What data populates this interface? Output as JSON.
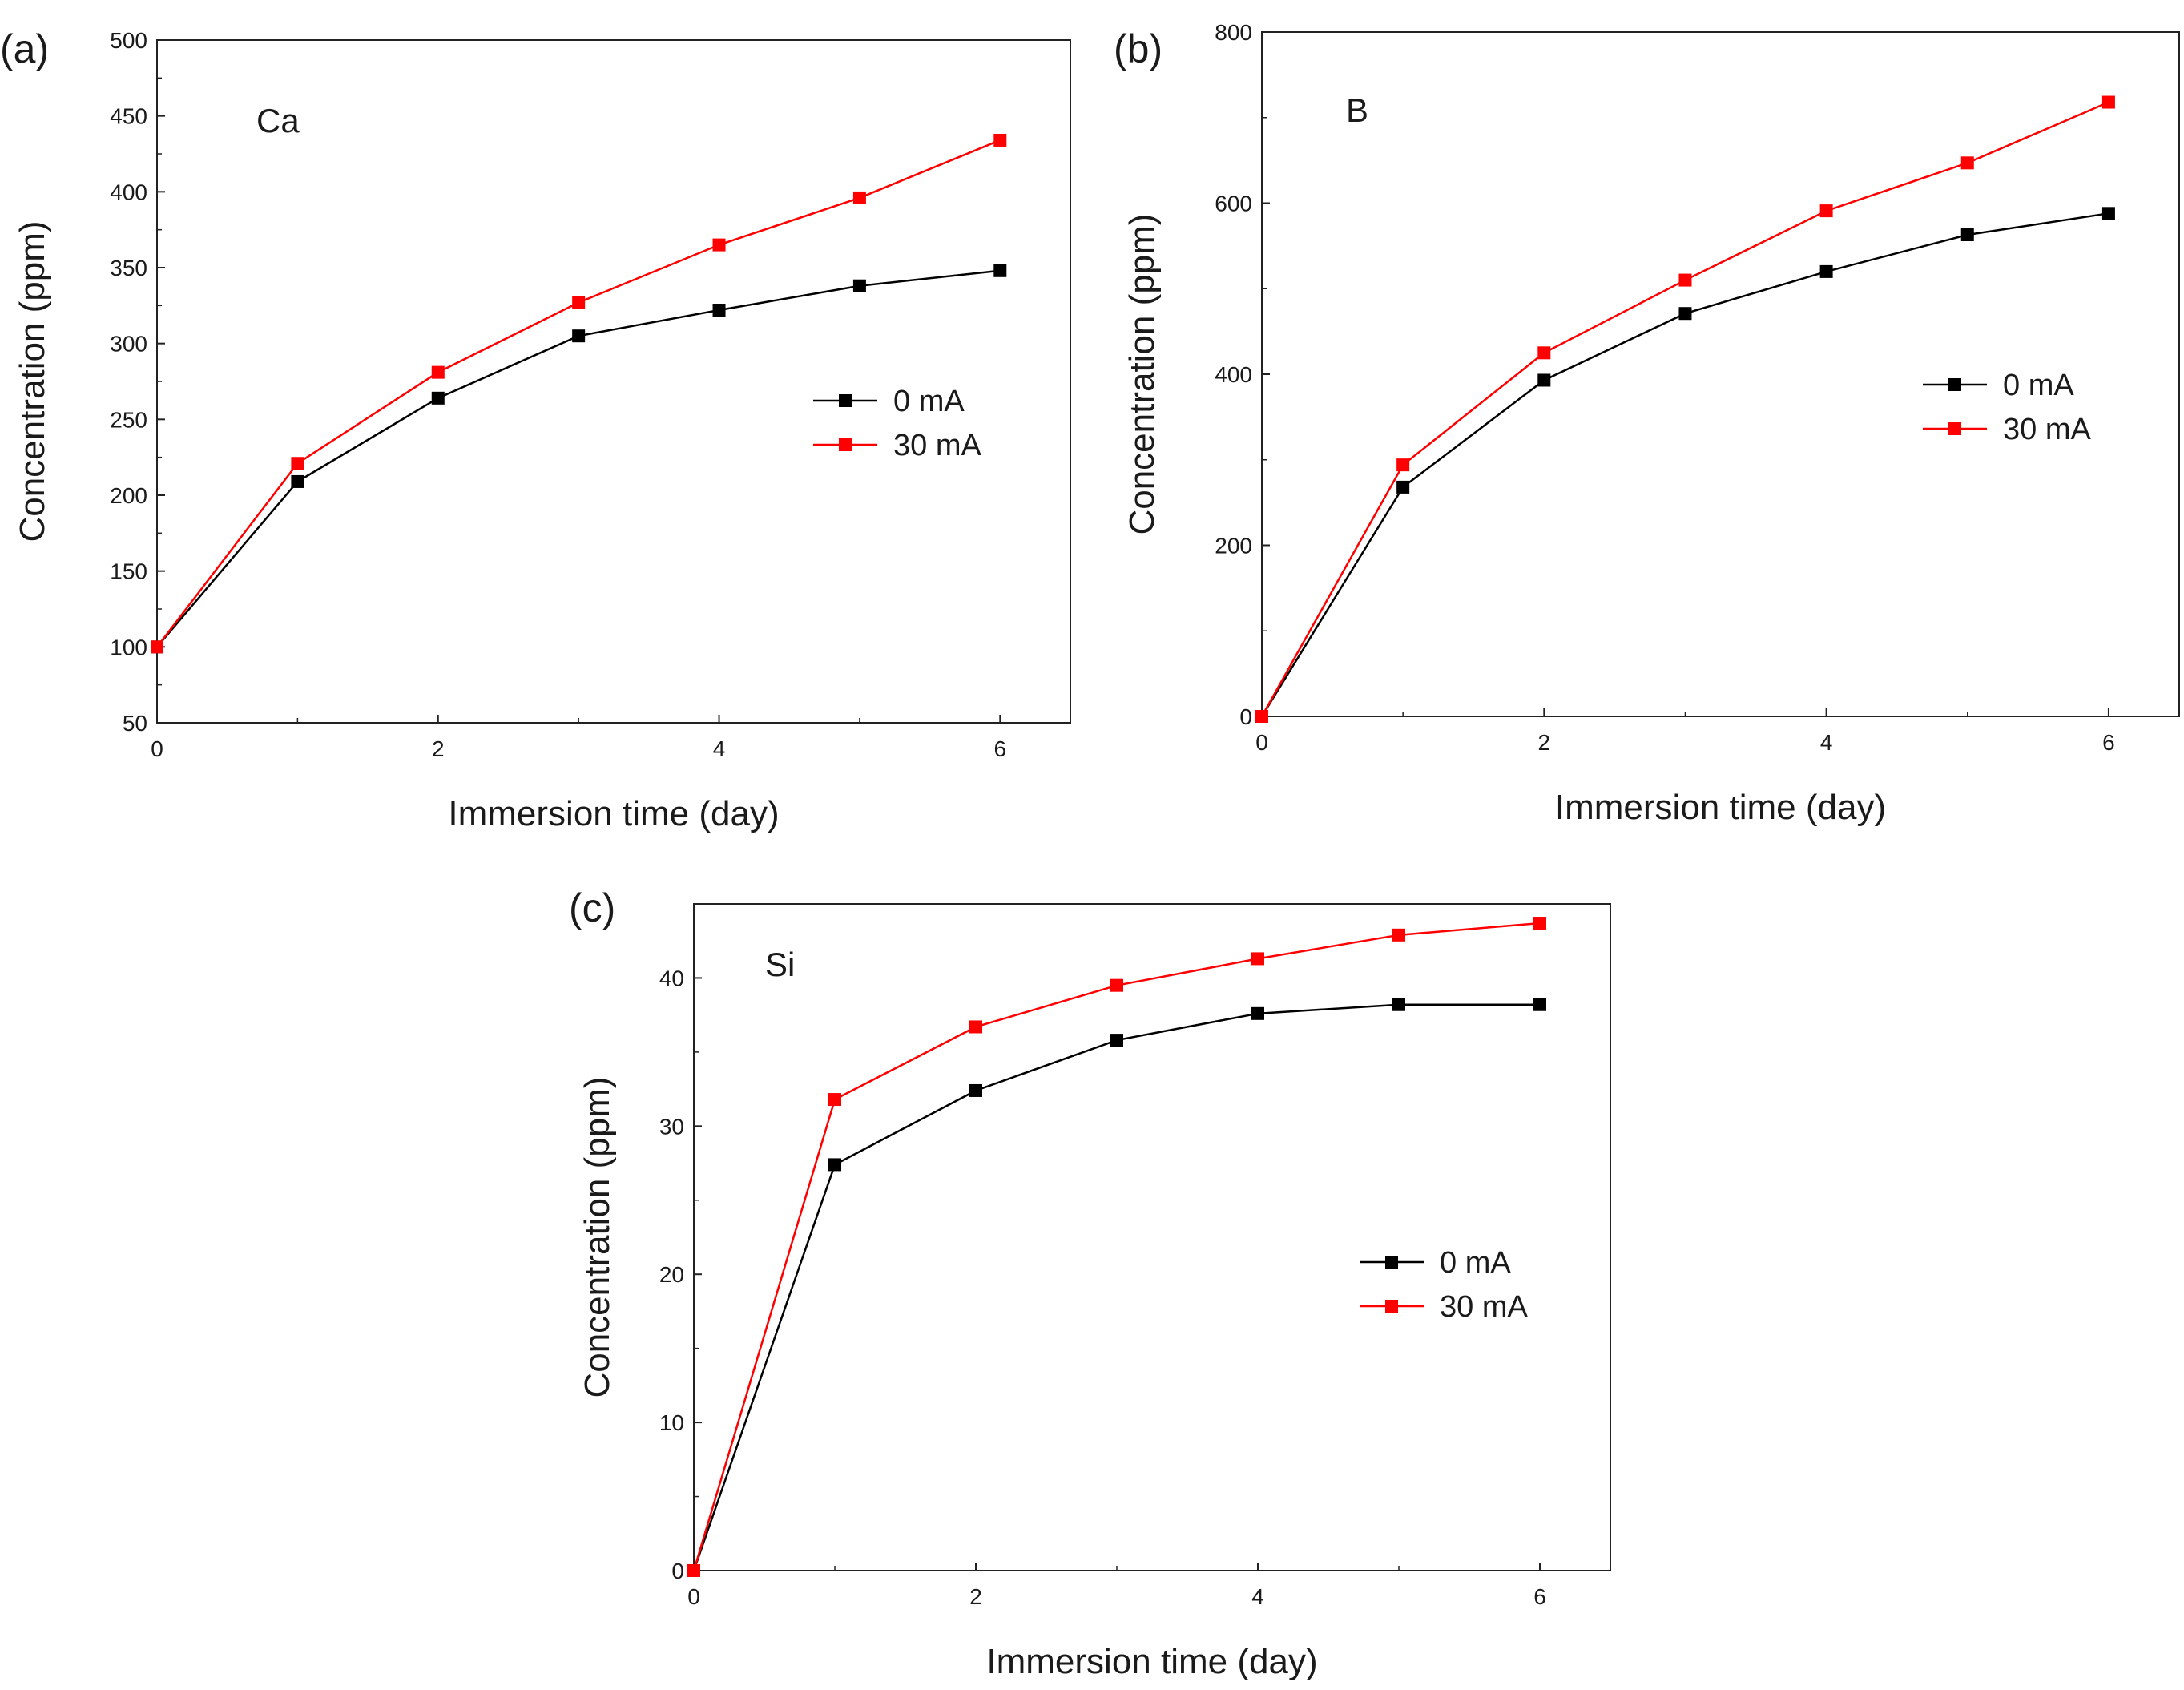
{
  "chart_data": [
    {
      "type": "line",
      "panel_label": "(a)",
      "element": "Ca",
      "xlabel": "Immersion time (day)",
      "ylabel": "Concentration (ppm)",
      "xlim": [
        0,
        6.5
      ],
      "ylim": [
        50,
        500
      ],
      "xticks": [
        0,
        2,
        4,
        6
      ],
      "yticks": [
        50,
        100,
        150,
        200,
        250,
        300,
        350,
        400,
        450,
        500
      ],
      "x": [
        0,
        1,
        2,
        3,
        4,
        5,
        6
      ],
      "series": [
        {
          "name": "0 mA",
          "color": "#000000",
          "values": [
            100,
            209,
            264,
            305,
            322,
            338,
            348
          ]
        },
        {
          "name": "30 mA",
          "color": "#ff0000",
          "values": [
            100,
            221,
            281,
            327,
            365,
            396,
            434
          ]
        }
      ],
      "legend_position": "middle-right"
    },
    {
      "type": "line",
      "panel_label": "(b)",
      "element": "B",
      "xlabel": "Immersion time (day)",
      "ylabel": "Concentration (ppm)",
      "xlim": [
        0,
        6.5
      ],
      "ylim": [
        0,
        800
      ],
      "xticks": [
        0,
        2,
        4,
        6
      ],
      "yticks": [
        0,
        200,
        400,
        600,
        800
      ],
      "x": [
        0,
        1,
        2,
        3,
        4,
        5,
        6
      ],
      "series": [
        {
          "name": "0 mA",
          "color": "#000000",
          "values": [
            0,
            268,
            393,
            471,
            520,
            563,
            588
          ]
        },
        {
          "name": "30 mA",
          "color": "#ff0000",
          "values": [
            0,
            294,
            425,
            510,
            591,
            647,
            718
          ]
        }
      ],
      "legend_position": "middle-right"
    },
    {
      "type": "line",
      "panel_label": "(c)",
      "element": "Si",
      "xlabel": "Immersion time (day)",
      "ylabel": "Concentration (ppm)",
      "xlim": [
        0,
        6.5
      ],
      "ylim": [
        0,
        45
      ],
      "xticks": [
        0,
        2,
        4,
        6
      ],
      "yticks": [
        0,
        10,
        20,
        30,
        40
      ],
      "x": [
        0,
        1,
        2,
        3,
        4,
        5,
        6
      ],
      "series": [
        {
          "name": "0 mA",
          "color": "#000000",
          "values": [
            0,
            27.4,
            32.4,
            35.8,
            37.6,
            38.2,
            38.2
          ]
        },
        {
          "name": "30 mA",
          "color": "#ff0000",
          "values": [
            0,
            31.8,
            36.7,
            39.5,
            41.3,
            42.9,
            43.7
          ]
        }
      ],
      "legend_position": "middle-right"
    }
  ]
}
